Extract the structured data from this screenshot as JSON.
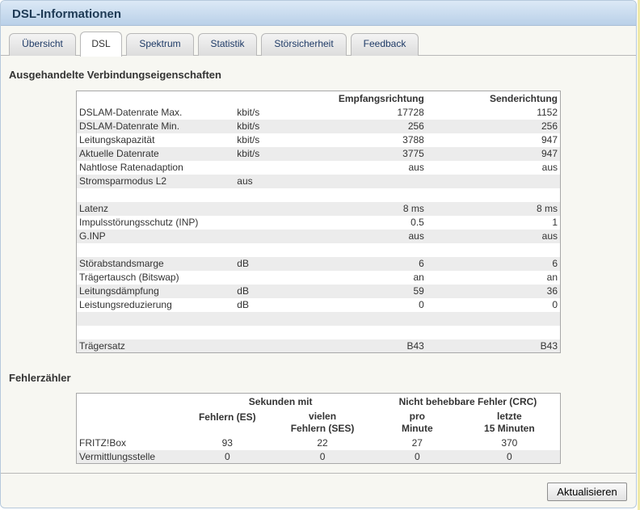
{
  "window": {
    "title": "DSL-Informationen"
  },
  "tabs": [
    {
      "label": "Übersicht",
      "active": false
    },
    {
      "label": "DSL",
      "active": true
    },
    {
      "label": "Spektrum",
      "active": false
    },
    {
      "label": "Statistik",
      "active": false
    },
    {
      "label": "Störsicherheit",
      "active": false
    },
    {
      "label": "Feedback",
      "active": false
    }
  ],
  "properties": {
    "title": "Ausgehandelte Verbindungseigenschaften",
    "headers": {
      "receive": "Empfangsrichtung",
      "send": "Senderichtung"
    },
    "rows": [
      {
        "label": "DSLAM-Datenrate Max.",
        "unit": "kbit/s",
        "rx": "17728",
        "tx": "1152"
      },
      {
        "label": "DSLAM-Datenrate Min.",
        "unit": "kbit/s",
        "rx": "256",
        "tx": "256"
      },
      {
        "label": "Leitungskapazität",
        "unit": "kbit/s",
        "rx": "3788",
        "tx": "947"
      },
      {
        "label": "Aktuelle Datenrate",
        "unit": "kbit/s",
        "rx": "3775",
        "tx": "947"
      },
      {
        "label": "Nahtlose Ratenadaption",
        "unit": "",
        "rx": "aus",
        "tx": "aus"
      },
      {
        "label": "Stromsparmodus L2",
        "unit": "aus",
        "rx": "",
        "tx": ""
      },
      {
        "label": "",
        "unit": "",
        "rx": "",
        "tx": ""
      },
      {
        "label": "Latenz",
        "unit": "",
        "rx": "8 ms",
        "tx": "8 ms"
      },
      {
        "label": "Impulsstörungsschutz (INP)",
        "unit": "",
        "rx": "0.5",
        "tx": "1"
      },
      {
        "label": "G.INP",
        "unit": "",
        "rx": "aus",
        "tx": "aus"
      },
      {
        "label": "",
        "unit": "",
        "rx": "",
        "tx": ""
      },
      {
        "label": "Störabstandsmarge",
        "unit": "dB",
        "rx": "6",
        "tx": "6"
      },
      {
        "label": "Trägertausch (Bitswap)",
        "unit": "",
        "rx": "an",
        "tx": "an"
      },
      {
        "label": "Leitungsdämpfung",
        "unit": "dB",
        "rx": "59",
        "tx": "36"
      },
      {
        "label": "Leistungsreduzierung",
        "unit": "dB",
        "rx": "0",
        "tx": "0"
      },
      {
        "label": "",
        "unit": "",
        "rx": "",
        "tx": ""
      },
      {
        "label": "",
        "unit": "",
        "rx": "",
        "tx": ""
      },
      {
        "label": "Trägersatz",
        "unit": "",
        "rx": "B43",
        "tx": "B43"
      }
    ]
  },
  "errors": {
    "title": "Fehlerzähler",
    "group1": "Sekunden mit",
    "group2": "Nicht behebbare Fehler (CRC)",
    "col1": "Fehlern (ES)",
    "col2_line1": "vielen",
    "col2_line2": "Fehlern (SES)",
    "col3_line1": "pro",
    "col3_line2": "Minute",
    "col4_line1": "letzte",
    "col4_line2": "15 Minuten",
    "rows": [
      {
        "label": "FRITZ!Box",
        "es": "93",
        "ses": "22",
        "crc_min": "27",
        "crc_15": "370"
      },
      {
        "label": "Vermittlungsstelle",
        "es": "0",
        "ses": "0",
        "crc_min": "0",
        "crc_15": "0"
      }
    ]
  },
  "buttons": {
    "refresh": "Aktualisieren"
  }
}
